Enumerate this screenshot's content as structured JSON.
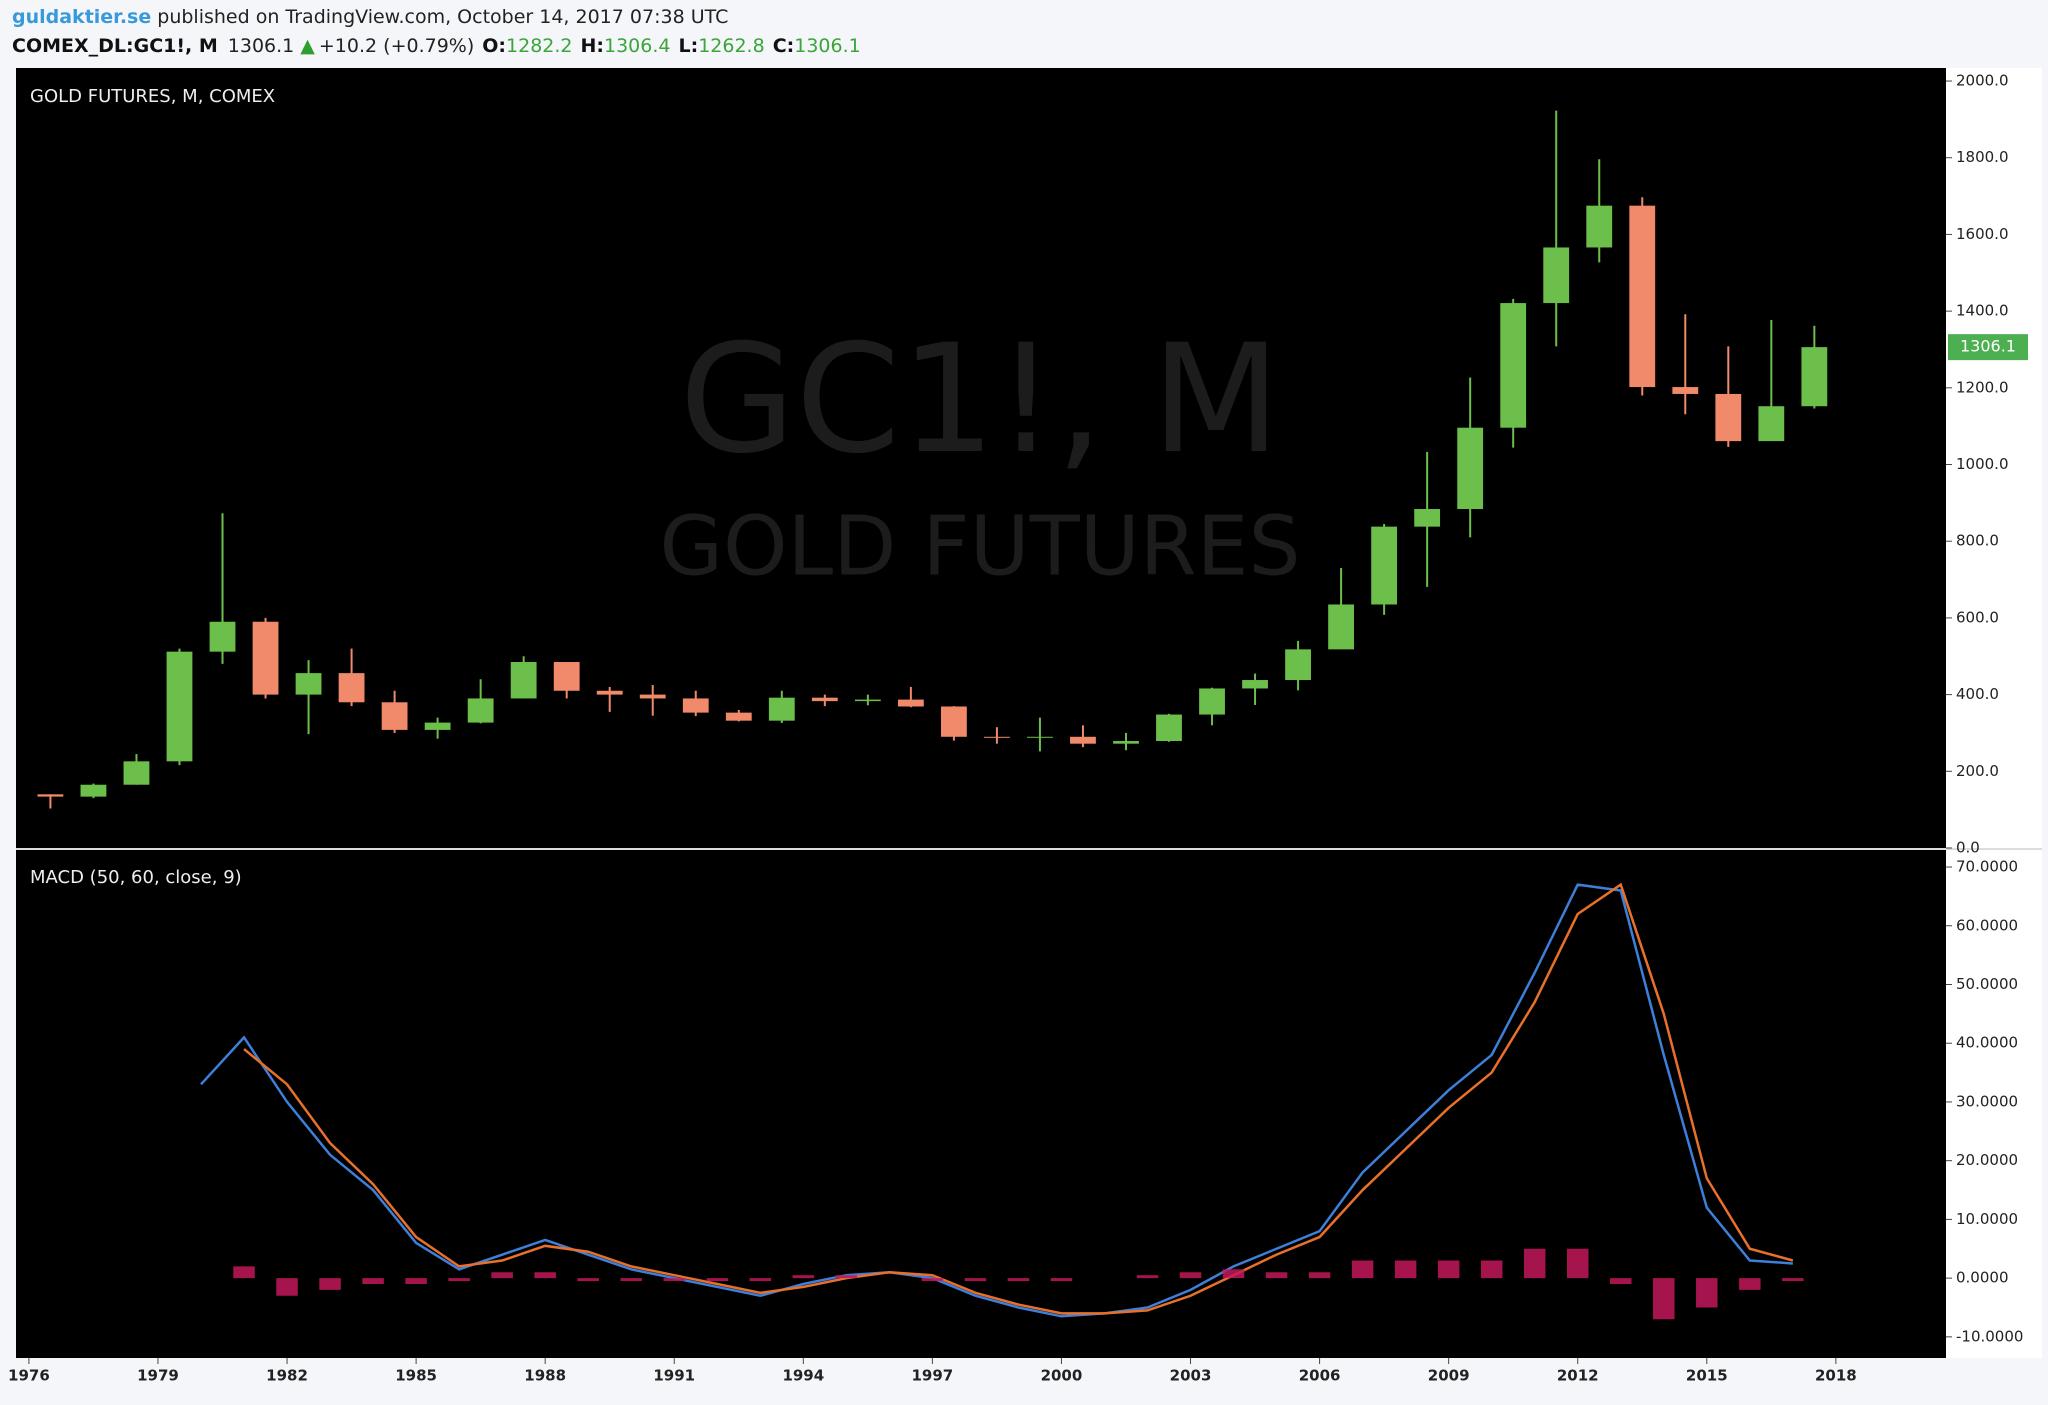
{
  "header": {
    "author": "guldaktier.se",
    "published": "published on TradingView.com, October 14, 2017 07:38 UTC",
    "symbol": "COMEX_DL:GC1!, M",
    "last": "1306.1",
    "change": "+10.2 (+0.79%)",
    "o_label": "O:",
    "o": "1282.2",
    "h_label": "H:",
    "h": "1306.4",
    "l_label": "L:",
    "l": "1262.8",
    "c_label": "C:",
    "c": "1306.1"
  },
  "watermark": {
    "symbol": "GC1!, M",
    "name": "GOLD FUTURES"
  },
  "chart_data": [
    {
      "type": "candlestick",
      "title": "GOLD FUTURES, M, COMEX",
      "x": [
        1976,
        1977,
        1978,
        1979,
        1980,
        1981,
        1982,
        1983,
        1984,
        1985,
        1986,
        1987,
        1988,
        1989,
        1990,
        1991,
        1992,
        1993,
        1994,
        1995,
        1996,
        1997,
        1998,
        1999,
        2000,
        2001,
        2002,
        2003,
        2004,
        2005,
        2006,
        2007,
        2008,
        2009,
        2010,
        2011,
        2012,
        2013,
        2014,
        2015,
        2016,
        2017
      ],
      "open": [
        140,
        134,
        165,
        226,
        512,
        590,
        400,
        456,
        380,
        308,
        327,
        390,
        485,
        410,
        400,
        390,
        353,
        332,
        392,
        383,
        387,
        369,
        290,
        288,
        290,
        272,
        279,
        348,
        416,
        438,
        518,
        635,
        838,
        884,
        1096,
        1421,
        1566,
        1675,
        1202,
        1184,
        1061,
        1152
      ],
      "high": [
        140,
        168,
        245,
        520,
        873,
        600,
        490,
        520,
        410,
        340,
        440,
        500,
        485,
        420,
        425,
        410,
        360,
        410,
        400,
        400,
        420,
        370,
        315,
        340,
        320,
        300,
        350,
        418,
        455,
        540,
        730,
        845,
        1033,
        1227,
        1432,
        1923,
        1796,
        1697,
        1392,
        1308,
        1377,
        1362
      ],
      "low": [
        103,
        130,
        165,
        216,
        480,
        390,
        297,
        370,
        300,
        285,
        325,
        390,
        390,
        355,
        345,
        344,
        330,
        326,
        370,
        372,
        367,
        280,
        272,
        252,
        263,
        255,
        277,
        320,
        373,
        411,
        520,
        608,
        681,
        810,
        1044,
        1308,
        1527,
        1180,
        1131,
        1046,
        1062,
        1146
      ],
      "close": [
        134,
        165,
        226,
        512,
        590,
        400,
        456,
        380,
        308,
        327,
        390,
        485,
        410,
        400,
        390,
        353,
        332,
        392,
        383,
        387,
        369,
        290,
        288,
        290,
        272,
        279,
        348,
        416,
        438,
        518,
        635,
        838,
        884,
        1096,
        1421,
        1566,
        1675,
        1202,
        1184,
        1061,
        1152,
        1306.1
      ],
      "up_color": "#6dbf4b",
      "down_color": "#f08a6a",
      "last_price": 1306.1,
      "last_color": "#4caf50",
      "xlim": [
        1975.7,
        2020.56
      ],
      "ylim": [
        0,
        2034
      ],
      "yticks": [
        {
          "value": 0,
          "label": "0.0"
        },
        {
          "value": 200,
          "label": "200.0"
        },
        {
          "value": 400,
          "label": "400.0"
        },
        {
          "value": 600,
          "label": "600.0"
        },
        {
          "value": 800,
          "label": "800.0"
        },
        {
          "value": 1000,
          "label": "1000.0"
        },
        {
          "value": 1200,
          "label": "1200.0"
        },
        {
          "value": 1400,
          "label": "1400.0"
        },
        {
          "value": 1600,
          "label": "1600.0"
        },
        {
          "value": 1800,
          "label": "1800.0"
        },
        {
          "value": 2000,
          "label": "2000.0"
        }
      ]
    },
    {
      "type": "macd",
      "title": "MACD (50, 60, close, 9)",
      "x": [
        1980,
        1981,
        1982,
        1983,
        1984,
        1985,
        1986,
        1987,
        1988,
        1989,
        1990,
        1991,
        1992,
        1993,
        1994,
        1995,
        1996,
        1997,
        1998,
        1999,
        2000,
        2001,
        2002,
        2003,
        2004,
        2005,
        2006,
        2007,
        2008,
        2009,
        2010,
        2011,
        2012,
        2013,
        2014,
        2015,
        2016,
        2017
      ],
      "series": [
        {
          "name": "MACD",
          "color": "#3d7fd9",
          "values": [
            33,
            41,
            30,
            21,
            15,
            6,
            1.5,
            4,
            6.5,
            4,
            1.5,
            0,
            -1.5,
            -3,
            -1,
            0.5,
            1,
            0,
            -3,
            -5,
            -6.5,
            -6,
            -5,
            -2,
            2,
            5,
            8,
            18,
            25,
            32,
            38,
            52,
            67,
            66,
            38,
            12,
            3,
            2.5
          ]
        },
        {
          "name": "Signal",
          "color": "#e8702a",
          "values": [
            null,
            39,
            33,
            23,
            16,
            7,
            2,
            3,
            5.5,
            4.5,
            2,
            0.5,
            -1,
            -2.5,
            -1.5,
            0,
            1,
            0.5,
            -2.5,
            -4.5,
            -6,
            -6,
            -5.5,
            -3,
            0.5,
            4,
            7,
            15,
            22,
            29,
            35,
            47,
            62,
            67,
            45,
            17,
            5,
            3
          ]
        },
        {
          "name": "Histogram",
          "color": "#c2185b",
          "bar": true,
          "values": [
            null,
            2,
            -3,
            -2,
            -1,
            -1,
            -0.5,
            1,
            1,
            -0.5,
            -0.5,
            -0.5,
            -0.5,
            -0.5,
            0.5,
            0.5,
            0,
            -0.5,
            -0.5,
            -0.5,
            -0.5,
            0,
            0.5,
            1,
            1.5,
            1,
            1,
            3,
            3,
            3,
            3,
            5,
            5,
            -1,
            -7,
            -5,
            -2,
            -0.5
          ]
        }
      ],
      "xlim": [
        1975.7,
        2020.56
      ],
      "ylim": [
        -13.6,
        72.9
      ],
      "yticks": [
        {
          "value": -10,
          "label": "-10.0000"
        },
        {
          "value": 0,
          "label": "0.0000"
        },
        {
          "value": 10,
          "label": "10.0000"
        },
        {
          "value": 20,
          "label": "20.0000"
        },
        {
          "value": 30,
          "label": "30.0000"
        },
        {
          "value": 40,
          "label": "40.0000"
        },
        {
          "value": 50,
          "label": "50.0000"
        },
        {
          "value": 60,
          "label": "60.0000"
        },
        {
          "value": 70,
          "label": "70.0000"
        }
      ],
      "xticks": [
        {
          "value": 1976,
          "label": "1976"
        },
        {
          "value": 1979,
          "label": "1979"
        },
        {
          "value": 1982,
          "label": "1982"
        },
        {
          "value": 1985,
          "label": "1985"
        },
        {
          "value": 1988,
          "label": "1988"
        },
        {
          "value": 1991,
          "label": "1991"
        },
        {
          "value": 1994,
          "label": "1994"
        },
        {
          "value": 1997,
          "label": "1997"
        },
        {
          "value": 2000,
          "label": "2000"
        },
        {
          "value": 2003,
          "label": "2003"
        },
        {
          "value": 2006,
          "label": "2006"
        },
        {
          "value": 2009,
          "label": "2009"
        },
        {
          "value": 2012,
          "label": "2012"
        },
        {
          "value": 2015,
          "label": "2015"
        },
        {
          "value": 2018,
          "label": "2018"
        }
      ]
    }
  ]
}
